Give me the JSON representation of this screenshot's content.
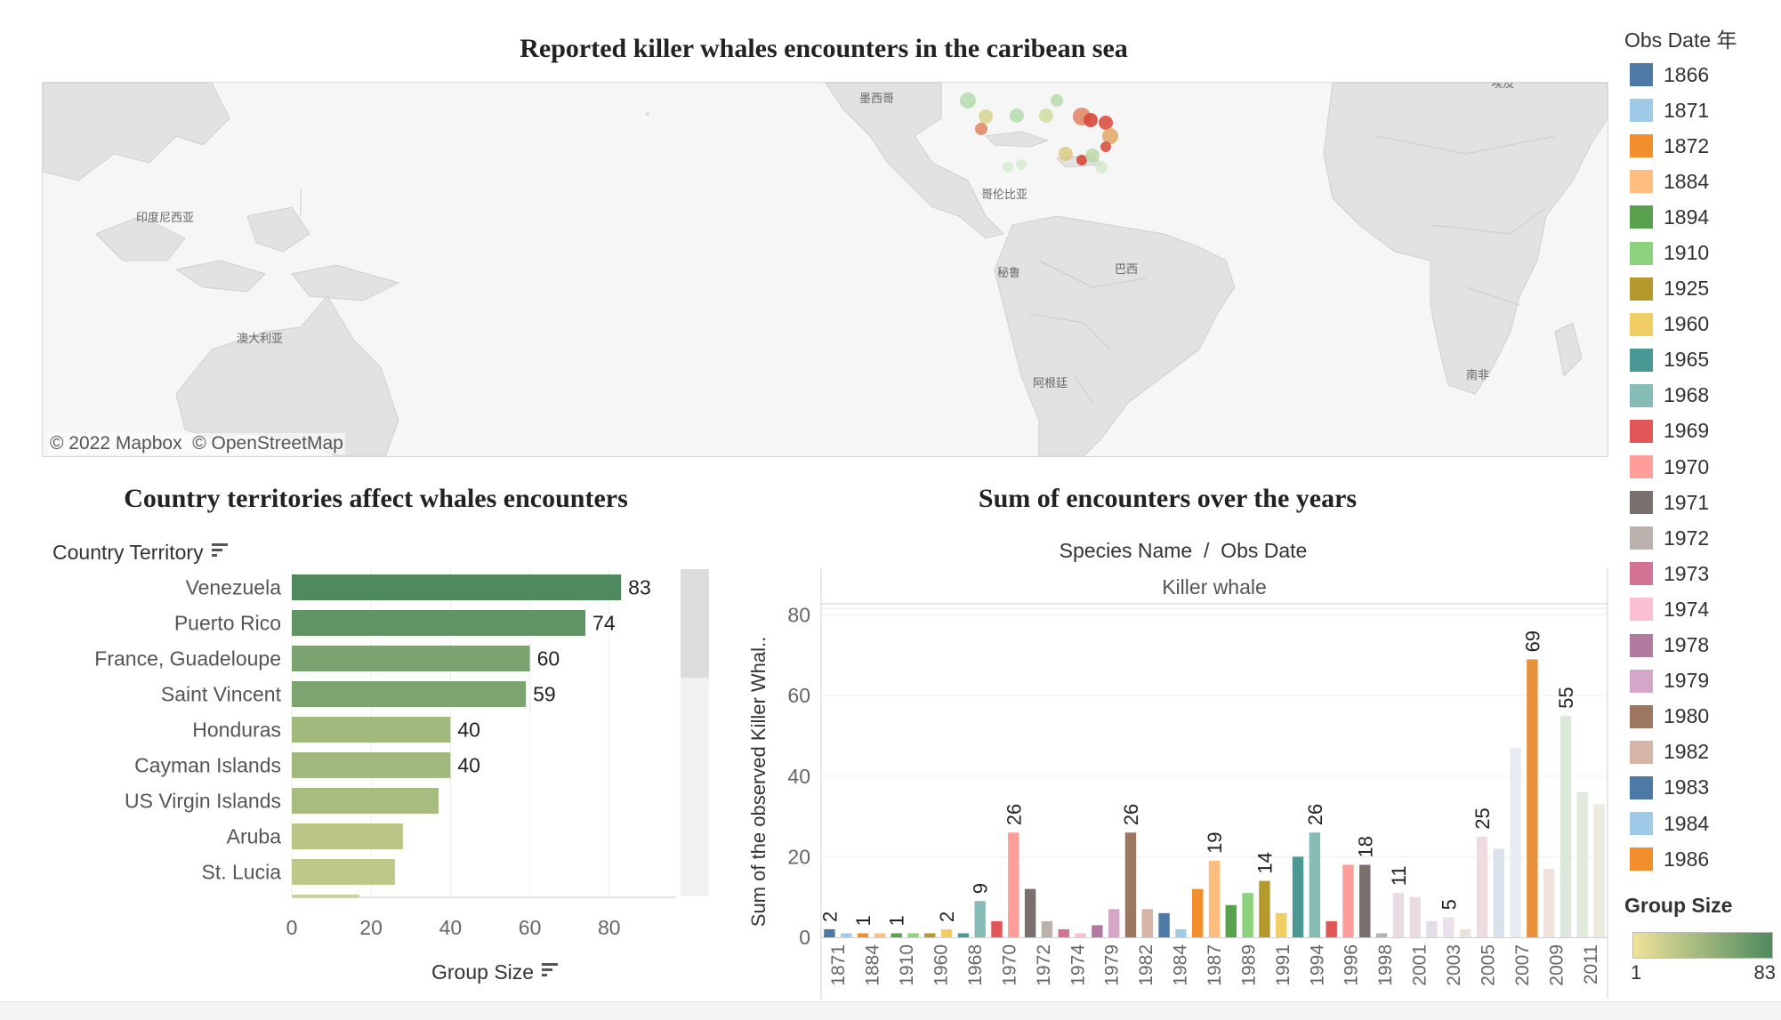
{
  "map_panel": {
    "title": "Reported killer whales encounters in the caribean sea",
    "attribution": "© 2022 Mapbox  © OpenStreetMap",
    "place_labels": [
      "墨西哥",
      "哥伦比亚",
      "秘鲁",
      "巴西",
      "阿根廷",
      "印度尼西亚",
      "澳大利亚",
      "南非",
      "埃及"
    ]
  },
  "bar_panel": {
    "title": "Country territories affect whales encounters",
    "dimension_label": "Country Territory",
    "measure_label": "Group Size",
    "sort-icon": "sort-icon"
  },
  "column_panel": {
    "title": "Sum of encounters over the years",
    "header_label": "Species Name  /  Obs Date",
    "pane_label": "Killer whale",
    "y_axis_label": "Sum of the observed Killer Whal.."
  },
  "legend": {
    "title": "Obs Date 年",
    "items": [
      {
        "label": "1866",
        "color": "#4e79a7"
      },
      {
        "label": "1871",
        "color": "#a0cbe8"
      },
      {
        "label": "1872",
        "color": "#f28e2b"
      },
      {
        "label": "1884",
        "color": "#ffbe7d"
      },
      {
        "label": "1894",
        "color": "#59a14f"
      },
      {
        "label": "1910",
        "color": "#8cd17d"
      },
      {
        "label": "1925",
        "color": "#b6992d"
      },
      {
        "label": "1960",
        "color": "#f1ce63"
      },
      {
        "label": "1965",
        "color": "#499894"
      },
      {
        "label": "1968",
        "color": "#86bcb6"
      },
      {
        "label": "1969",
        "color": "#e15759"
      },
      {
        "label": "1970",
        "color": "#ff9d9a"
      },
      {
        "label": "1971",
        "color": "#79706e"
      },
      {
        "label": "1972",
        "color": "#bab0ac"
      },
      {
        "label": "1973",
        "color": "#d37295"
      },
      {
        "label": "1974",
        "color": "#fabfd2"
      },
      {
        "label": "1978",
        "color": "#b07aa1"
      },
      {
        "label": "1979",
        "color": "#d4a6c8"
      },
      {
        "label": "1980",
        "color": "#9d7660"
      },
      {
        "label": "1982",
        "color": "#d7b5a6"
      },
      {
        "label": "1983",
        "color": "#4e79a7"
      },
      {
        "label": "1984",
        "color": "#a0cbe8"
      },
      {
        "label": "1986",
        "color": "#f28e2b"
      }
    ],
    "size_title": "Group Size",
    "size_min": "1",
    "size_max": "83"
  },
  "chart_data": [
    {
      "type": "bar",
      "orientation": "horizontal",
      "title": "Country territories affect whales encounters",
      "ylabel": "Country Territory",
      "xlabel": "Group Size",
      "categories": [
        "Venezuela",
        "Puerto Rico",
        "France, Guadeloupe",
        "Saint Vincent",
        "Honduras",
        "Cayman Islands",
        "US Virgin Islands",
        "Aruba",
        "St. Lucia"
      ],
      "values": [
        83,
        74,
        60,
        59,
        40,
        40,
        37,
        28,
        26
      ],
      "data_labels": [
        "83",
        "74",
        "60",
        "59",
        "40",
        "40",
        "",
        "",
        ""
      ],
      "partial_next_value": 17,
      "xlim": [
        0,
        100
      ],
      "xticks": [
        "0",
        "20",
        "40",
        "60",
        "80"
      ],
      "color_scale": {
        "min": 1,
        "max": 83,
        "low_color": "#efe39a",
        "high_color": "#4e8a5e"
      }
    },
    {
      "type": "bar",
      "orientation": "vertical",
      "title": "Sum of encounters over the years",
      "xlabel": "Species Name / Obs Date",
      "ylabel": "Sum of the observed Killer Whal..",
      "pane": "Killer whale",
      "ylim": [
        0,
        90
      ],
      "yticks": [
        "0",
        "20",
        "40",
        "60",
        "80"
      ],
      "x_tick_labels": [
        "1871",
        "1884",
        "1910",
        "1960",
        "1968",
        "1970",
        "1972",
        "1974",
        "1979",
        "1982",
        "1984",
        "1987",
        "1989",
        "1991",
        "1994",
        "1996",
        "1998",
        "2001",
        "2003",
        "2005",
        "2007",
        "2009",
        "2011"
      ],
      "bars": [
        {
          "year": "1866",
          "value": 2,
          "color": "#4e79a7",
          "label": "2"
        },
        {
          "year": "1871",
          "value": 1,
          "color": "#a0cbe8",
          "label": ""
        },
        {
          "year": "1872",
          "value": 1,
          "color": "#f28e2b",
          "label": "1"
        },
        {
          "year": "1884",
          "value": 1,
          "color": "#ffbe7d",
          "label": ""
        },
        {
          "year": "1894",
          "value": 1,
          "color": "#59a14f",
          "label": "1"
        },
        {
          "year": "1910",
          "value": 1,
          "color": "#8cd17d",
          "label": ""
        },
        {
          "year": "1925",
          "value": 1,
          "color": "#b6992d",
          "label": ""
        },
        {
          "year": "1960",
          "value": 2,
          "color": "#f1ce63",
          "label": "2"
        },
        {
          "year": "1965",
          "value": 1,
          "color": "#499894",
          "label": ""
        },
        {
          "year": "1968",
          "value": 9,
          "color": "#86bcb6",
          "label": "9"
        },
        {
          "year": "1969",
          "value": 4,
          "color": "#e15759",
          "label": ""
        },
        {
          "year": "1970",
          "value": 26,
          "color": "#ff9d9a",
          "label": "26"
        },
        {
          "year": "1971",
          "value": 12,
          "color": "#79706e",
          "label": ""
        },
        {
          "year": "1972",
          "value": 4,
          "color": "#bab0ac",
          "label": ""
        },
        {
          "year": "1973",
          "value": 2,
          "color": "#d37295",
          "label": ""
        },
        {
          "year": "1974",
          "value": 1,
          "color": "#fabfd2",
          "label": ""
        },
        {
          "year": "1978",
          "value": 3,
          "color": "#b07aa1",
          "label": ""
        },
        {
          "year": "1979",
          "value": 7,
          "color": "#d4a6c8",
          "label": ""
        },
        {
          "year": "1980",
          "value": 26,
          "color": "#9d7660",
          "label": "26"
        },
        {
          "year": "1982",
          "value": 7,
          "color": "#d7b5a6",
          "label": ""
        },
        {
          "year": "1983",
          "value": 6,
          "color": "#4e79a7",
          "label": ""
        },
        {
          "year": "1984",
          "value": 2,
          "color": "#a0cbe8",
          "label": ""
        },
        {
          "year": "1986",
          "value": 12,
          "color": "#f28e2b",
          "label": ""
        },
        {
          "year": "1987",
          "value": 19,
          "color": "#ffbe7d",
          "label": "19"
        },
        {
          "year": "1988",
          "value": 8,
          "color": "#59a14f",
          "label": ""
        },
        {
          "year": "1989",
          "value": 11,
          "color": "#8cd17d",
          "label": ""
        },
        {
          "year": "1990",
          "value": 14,
          "color": "#b6992d",
          "label": "14"
        },
        {
          "year": "1991",
          "value": 6,
          "color": "#f1ce63",
          "label": ""
        },
        {
          "year": "1993",
          "value": 20,
          "color": "#499894",
          "label": ""
        },
        {
          "year": "1994",
          "value": 26,
          "color": "#86bcb6",
          "label": "26"
        },
        {
          "year": "1995",
          "value": 4,
          "color": "#e15759",
          "label": ""
        },
        {
          "year": "1996",
          "value": 18,
          "color": "#ff9d9a",
          "label": ""
        },
        {
          "year": "1997",
          "value": 18,
          "color": "#79706e",
          "label": "18"
        },
        {
          "year": "1998",
          "value": 1,
          "color": "#bab0ac",
          "label": ""
        },
        {
          "year": "2000",
          "value": 11,
          "color": "#eadbe2",
          "label": "11"
        },
        {
          "year": "2001",
          "value": 10,
          "color": "#eadbe2",
          "label": ""
        },
        {
          "year": "2002",
          "value": 4,
          "color": "#e3dde6",
          "label": ""
        },
        {
          "year": "2003",
          "value": 5,
          "color": "#ece0ee",
          "label": "5"
        },
        {
          "year": "2004",
          "value": 2,
          "color": "#ede2dc",
          "label": ""
        },
        {
          "year": "2005",
          "value": 25,
          "color": "#efdcdf",
          "label": "25"
        },
        {
          "year": "2006",
          "value": 22,
          "color": "#d9e2ea",
          "label": ""
        },
        {
          "year": "2007",
          "value": 47,
          "color": "#e6ecf2",
          "label": ""
        },
        {
          "year": "2008",
          "value": 69,
          "color": "#e8913b",
          "label": "69"
        },
        {
          "year": "2009",
          "value": 17,
          "color": "#f1e2dc",
          "label": ""
        },
        {
          "year": "2010",
          "value": 55,
          "color": "#dce9da",
          "label": "55"
        },
        {
          "year": "2011",
          "value": 36,
          "color": "#e0eadd",
          "label": ""
        },
        {
          "year": "2012",
          "value": 33,
          "color": "#ece9de",
          "label": ""
        }
      ]
    }
  ]
}
